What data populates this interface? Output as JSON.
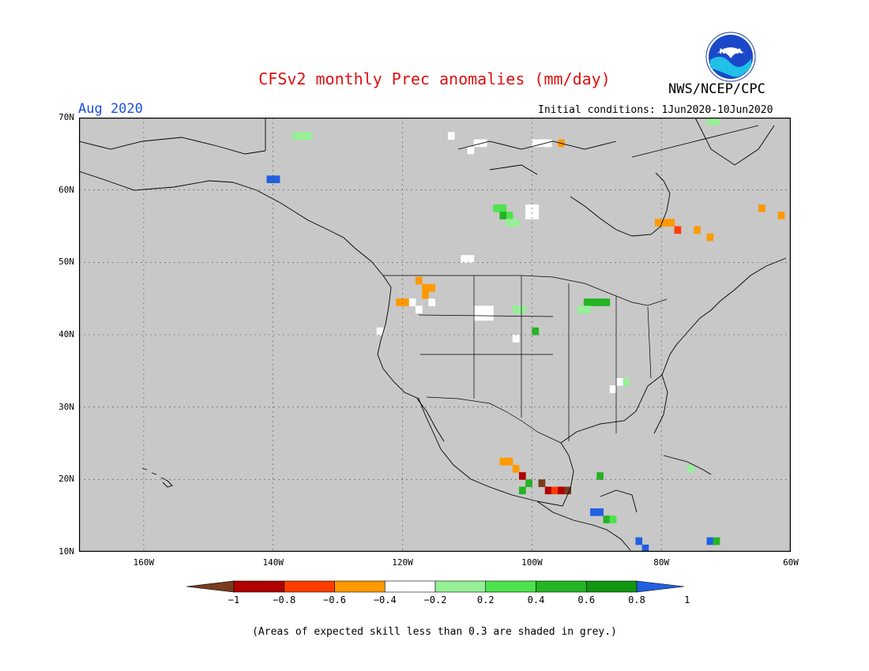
{
  "header": {
    "title": "CFSv2 monthly Prec anomalies (mm/day)",
    "agency": "NWS/NCEP/CPC",
    "valid_month": "Aug 2020",
    "initial_conditions": "Initial conditions: 1Jun2020-10Jun2020",
    "logo_text": "NOAA"
  },
  "map": {
    "region": "North America",
    "lon_range": [
      -170,
      -60
    ],
    "lat_range": [
      10,
      70
    ],
    "background_color": "#c8c8c8",
    "lat_labels": [
      "70N",
      "60N",
      "50N",
      "40N",
      "30N",
      "20N",
      "10N"
    ],
    "lon_labels": [
      "160W",
      "140W",
      "120W",
      "100W",
      "80W",
      "60W"
    ],
    "grid_lats": [
      70,
      60,
      50,
      40,
      30,
      20,
      10
    ],
    "grid_lons": [
      -160,
      -140,
      -120,
      -100,
      -80,
      -60
    ]
  },
  "colorbar": {
    "labels": [
      "−1",
      "−0.8",
      "−0.6",
      "−0.4",
      "−0.2",
      "0.2",
      "0.4",
      "0.6",
      "0.8",
      "1"
    ],
    "colors": [
      "#7a3b1e",
      "#b00000",
      "#ff3c00",
      "#ff9900",
      "#ffffff",
      "#96f096",
      "#4ce44c",
      "#24b424",
      "#129612",
      "#2060e0"
    ]
  },
  "anomaly_cells": [
    {
      "lon": -140,
      "lat": 61,
      "color": "#2060e0"
    },
    {
      "lon": -141,
      "lat": 61,
      "color": "#2060e0"
    },
    {
      "lon": -137,
      "lat": 67,
      "color": "#96f096"
    },
    {
      "lon": -136,
      "lat": 67,
      "color": "#96f096"
    },
    {
      "lon": -135,
      "lat": 67,
      "color": "#96f096"
    },
    {
      "lon": -106,
      "lat": 57,
      "color": "#4ce44c"
    },
    {
      "lon": -105,
      "lat": 57,
      "color": "#4ce44c"
    },
    {
      "lon": -104,
      "lat": 56,
      "color": "#4ce44c"
    },
    {
      "lon": -105,
      "lat": 56,
      "color": "#24b424"
    },
    {
      "lon": -104,
      "lat": 55,
      "color": "#96f096"
    },
    {
      "lon": -103,
      "lat": 55,
      "color": "#96f096"
    },
    {
      "lon": -101,
      "lat": 57,
      "color": "#ffffff"
    },
    {
      "lon": -100,
      "lat": 57,
      "color": "#ffffff"
    },
    {
      "lon": -101,
      "lat": 56,
      "color": "#ffffff"
    },
    {
      "lon": -100,
      "lat": 56,
      "color": "#ffffff"
    },
    {
      "lon": -118,
      "lat": 47,
      "color": "#ff9900"
    },
    {
      "lon": -117,
      "lat": 46,
      "color": "#ff9900"
    },
    {
      "lon": -116,
      "lat": 46,
      "color": "#ff9900"
    },
    {
      "lon": -117,
      "lat": 45,
      "color": "#ff9900"
    },
    {
      "lon": -120,
      "lat": 44,
      "color": "#ff9900"
    },
    {
      "lon": -121,
      "lat": 44,
      "color": "#ff9900"
    },
    {
      "lon": -119,
      "lat": 44,
      "color": "#ffffff"
    },
    {
      "lon": -118,
      "lat": 43,
      "color": "#ffffff"
    },
    {
      "lon": -116,
      "lat": 44,
      "color": "#ffffff"
    },
    {
      "lon": -109,
      "lat": 43,
      "color": "#ffffff"
    },
    {
      "lon": -108,
      "lat": 43,
      "color": "#ffffff"
    },
    {
      "lon": -107,
      "lat": 43,
      "color": "#ffffff"
    },
    {
      "lon": -109,
      "lat": 42,
      "color": "#ffffff"
    },
    {
      "lon": -108,
      "lat": 42,
      "color": "#ffffff"
    },
    {
      "lon": -107,
      "lat": 42,
      "color": "#ffffff"
    },
    {
      "lon": -103,
      "lat": 43,
      "color": "#96f096"
    },
    {
      "lon": -102,
      "lat": 43,
      "color": "#96f096"
    },
    {
      "lon": -92,
      "lat": 44,
      "color": "#24b424"
    },
    {
      "lon": -91,
      "lat": 44,
      "color": "#24b424"
    },
    {
      "lon": -90,
      "lat": 44,
      "color": "#24b424"
    },
    {
      "lon": -89,
      "lat": 44,
      "color": "#24b424"
    },
    {
      "lon": -93,
      "lat": 43,
      "color": "#96f096"
    },
    {
      "lon": -92,
      "lat": 43,
      "color": "#96f096"
    },
    {
      "lon": -100,
      "lat": 40,
      "color": "#24b424"
    },
    {
      "lon": -79,
      "lat": 55,
      "color": "#ff9900"
    },
    {
      "lon": -80,
      "lat": 55,
      "color": "#ff9900"
    },
    {
      "lon": -81,
      "lat": 55,
      "color": "#ff9900"
    },
    {
      "lon": -78,
      "lat": 54,
      "color": "#ff3c00"
    },
    {
      "lon": -75,
      "lat": 54,
      "color": "#ff9900"
    },
    {
      "lon": -73,
      "lat": 53,
      "color": "#ff9900"
    },
    {
      "lon": -65,
      "lat": 57,
      "color": "#ff9900"
    },
    {
      "lon": -62,
      "lat": 56,
      "color": "#ff9900"
    },
    {
      "lon": -105,
      "lat": 22,
      "color": "#ff9900"
    },
    {
      "lon": -104,
      "lat": 22,
      "color": "#ff9900"
    },
    {
      "lon": -103,
      "lat": 21,
      "color": "#ff9900"
    },
    {
      "lon": -102,
      "lat": 20,
      "color": "#b00000"
    },
    {
      "lon": -99,
      "lat": 19,
      "color": "#7a3b1e"
    },
    {
      "lon": -98,
      "lat": 18,
      "color": "#b00000"
    },
    {
      "lon": -97,
      "lat": 18,
      "color": "#ff3c00"
    },
    {
      "lon": -96,
      "lat": 18,
      "color": "#b00000"
    },
    {
      "lon": -95,
      "lat": 18,
      "color": "#7a3b1e"
    },
    {
      "lon": -101,
      "lat": 19,
      "color": "#24b424"
    },
    {
      "lon": -102,
      "lat": 18,
      "color": "#24b424"
    },
    {
      "lon": -90,
      "lat": 20,
      "color": "#24b424"
    },
    {
      "lon": -91,
      "lat": 15,
      "color": "#2060e0"
    },
    {
      "lon": -90,
      "lat": 15,
      "color": "#2060e0"
    },
    {
      "lon": -89,
      "lat": 14,
      "color": "#24b424"
    },
    {
      "lon": -88,
      "lat": 14,
      "color": "#4ce44c"
    },
    {
      "lon": -84,
      "lat": 11,
      "color": "#2060e0"
    },
    {
      "lon": -83,
      "lat": 10,
      "color": "#2060e0"
    },
    {
      "lon": -73,
      "lat": 11,
      "color": "#2060e0"
    },
    {
      "lon": -72,
      "lat": 11,
      "color": "#24b424"
    },
    {
      "lon": -76,
      "lat": 21,
      "color": "#96f096"
    },
    {
      "lon": -86,
      "lat": 33,
      "color": "#96f096"
    },
    {
      "lon": -87,
      "lat": 33,
      "color": "#ffffff"
    },
    {
      "lon": -88,
      "lat": 32,
      "color": "#ffffff"
    },
    {
      "lon": -72,
      "lat": 69,
      "color": "#96f096"
    },
    {
      "lon": -73,
      "lat": 69,
      "color": "#96f096"
    },
    {
      "lon": -100,
      "lat": 66,
      "color": "#ffffff"
    },
    {
      "lon": -99,
      "lat": 66,
      "color": "#ffffff"
    },
    {
      "lon": -98,
      "lat": 66,
      "color": "#ffffff"
    },
    {
      "lon": -96,
      "lat": 66,
      "color": "#ff9900"
    },
    {
      "lon": -110,
      "lat": 65,
      "color": "#ffffff"
    },
    {
      "lon": -109,
      "lat": 66,
      "color": "#ffffff"
    },
    {
      "lon": -108,
      "lat": 66,
      "color": "#ffffff"
    },
    {
      "lon": -113,
      "lat": 67,
      "color": "#ffffff"
    },
    {
      "lon": -111,
      "lat": 50,
      "color": "#ffffff"
    },
    {
      "lon": -110,
      "lat": 50,
      "color": "#ffffff"
    },
    {
      "lon": -124,
      "lat": 40,
      "color": "#ffffff"
    },
    {
      "lon": -103,
      "lat": 39,
      "color": "#ffffff"
    }
  ],
  "footer": {
    "note": "(Areas of expected skill less than 0.3 are shaded in grey.)"
  }
}
